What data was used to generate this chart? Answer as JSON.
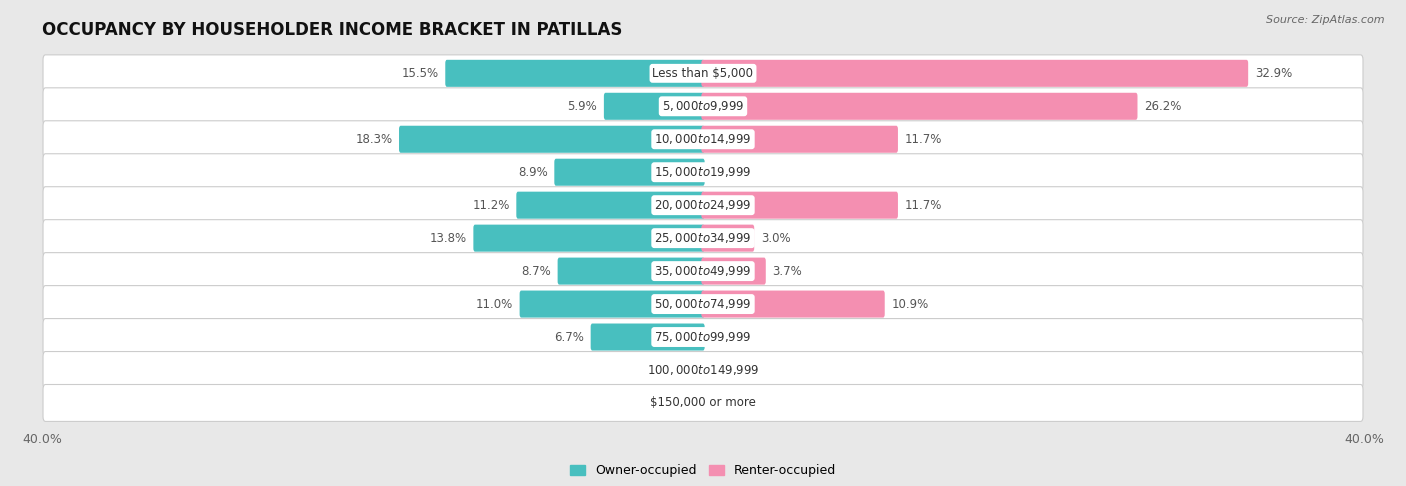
{
  "title": "OCCUPANCY BY HOUSEHOLDER INCOME BRACKET IN PATILLAS",
  "source": "Source: ZipAtlas.com",
  "categories": [
    "Less than $5,000",
    "$5,000 to $9,999",
    "$10,000 to $14,999",
    "$15,000 to $19,999",
    "$20,000 to $24,999",
    "$25,000 to $34,999",
    "$35,000 to $49,999",
    "$50,000 to $74,999",
    "$75,000 to $99,999",
    "$100,000 to $149,999",
    "$150,000 or more"
  ],
  "owner_values": [
    15.5,
    5.9,
    18.3,
    8.9,
    11.2,
    13.8,
    8.7,
    11.0,
    6.7,
    0.0,
    0.0
  ],
  "renter_values": [
    32.9,
    26.2,
    11.7,
    0.0,
    11.7,
    3.0,
    3.7,
    10.9,
    0.0,
    0.0,
    0.0
  ],
  "owner_color": "#48BFBF",
  "renter_color": "#F48FB1",
  "background_color": "#e8e8e8",
  "axis_max": 40.0,
  "title_fontsize": 12,
  "label_fontsize": 8.5,
  "value_fontsize": 8.5,
  "tick_fontsize": 9,
  "legend_fontsize": 9,
  "bar_height": 0.62
}
